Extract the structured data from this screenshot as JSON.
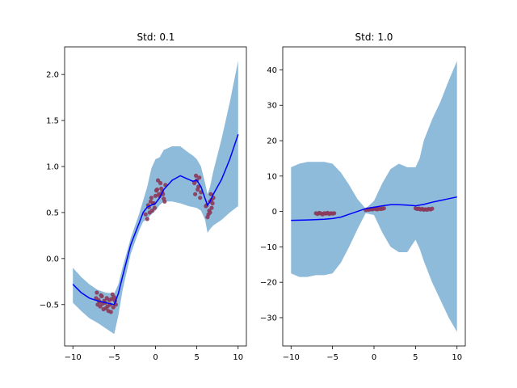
{
  "colors": {
    "band": "#8fbbda",
    "mean": "#0000ff",
    "points": "#8b3a5a",
    "frame": "#000000"
  },
  "chart_data": [
    {
      "type": "line",
      "title": "Std: 0.1",
      "xlim": [
        -11,
        11
      ],
      "ylim": [
        -0.95,
        2.3
      ],
      "xticks": [
        -10,
        -5,
        0,
        5,
        10
      ],
      "yticks": [
        -0.5,
        0.0,
        0.5,
        1.0,
        1.5,
        2.0
      ],
      "ytick_labels": [
        "−0.5",
        "0.0",
        "0.5",
        "1.0",
        "1.5",
        "2.0"
      ],
      "xtick_labels": [
        "−10",
        "−5",
        "0",
        "5",
        "10"
      ],
      "mean": {
        "x": [
          -10,
          -9,
          -8,
          -7,
          -6,
          -5,
          -4.5,
          -4,
          -3,
          -2,
          -1.5,
          -1,
          -0.5,
          0,
          0.5,
          1,
          2,
          3,
          4,
          4.5,
          5,
          5.5,
          6,
          6.3,
          6.6,
          7,
          8,
          9,
          10
        ],
        "y": [
          -0.28,
          -0.37,
          -0.43,
          -0.46,
          -0.48,
          -0.5,
          -0.38,
          -0.2,
          0.15,
          0.38,
          0.5,
          0.56,
          0.58,
          0.6,
          0.66,
          0.75,
          0.85,
          0.9,
          0.86,
          0.84,
          0.85,
          0.78,
          0.65,
          0.58,
          0.62,
          0.7,
          0.86,
          1.08,
          1.35
        ]
      },
      "band": {
        "x": [
          -10,
          -9,
          -8,
          -7,
          -6,
          -5,
          -4.5,
          -4,
          -3,
          -2,
          -1.5,
          -1,
          -0.5,
          0,
          0.5,
          1,
          2,
          3,
          4,
          4.5,
          5,
          5.5,
          6,
          6.3,
          6.6,
          7,
          8,
          9,
          10
        ],
        "upper": [
          -0.1,
          -0.2,
          -0.28,
          -0.34,
          -0.37,
          -0.38,
          -0.28,
          -0.1,
          0.22,
          0.48,
          0.63,
          0.78,
          0.98,
          1.08,
          1.1,
          1.18,
          1.22,
          1.22,
          1.15,
          1.12,
          1.08,
          1.0,
          0.82,
          0.7,
          0.78,
          0.95,
          1.3,
          1.7,
          2.15
        ],
        "lower": [
          -0.48,
          -0.57,
          -0.65,
          -0.7,
          -0.76,
          -0.82,
          -0.62,
          -0.35,
          0.05,
          0.3,
          0.4,
          0.43,
          0.48,
          0.52,
          0.58,
          0.62,
          0.62,
          0.6,
          0.57,
          0.56,
          0.55,
          0.52,
          0.42,
          0.28,
          0.32,
          0.36,
          0.42,
          0.5,
          0.57
        ]
      },
      "points": {
        "x": [
          -7.1,
          -6.9,
          -6.7,
          -6.5,
          -6.3,
          -6.1,
          -5.9,
          -5.7,
          -5.5,
          -5.3,
          -5.1,
          -4.9,
          -7.0,
          -6.6,
          -6.2,
          -5.8,
          -5.4,
          -5.0,
          -6.8,
          -6.0,
          -5.2,
          -6.4,
          -5.6,
          -7.2,
          -4.8,
          -1.2,
          -1.0,
          -0.8,
          -0.6,
          -0.4,
          -0.2,
          0.0,
          0.2,
          0.4,
          0.6,
          0.8,
          1.0,
          1.2,
          -0.9,
          -0.5,
          -0.1,
          0.3,
          0.7,
          1.1,
          -0.7,
          0.1,
          0.5,
          -0.3,
          0.9,
          4.7,
          4.9,
          5.1,
          5.3,
          5.5,
          5.0,
          5.2,
          4.8,
          5.4,
          6.2,
          6.4,
          6.6,
          6.8,
          7.0,
          6.3,
          6.5,
          6.7,
          6.9,
          6.1,
          6.6,
          6.8
        ],
        "y": [
          -0.37,
          -0.45,
          -0.52,
          -0.41,
          -0.55,
          -0.48,
          -0.43,
          -0.57,
          -0.5,
          -0.44,
          -0.53,
          -0.46,
          -0.5,
          -0.4,
          -0.46,
          -0.52,
          -0.58,
          -0.42,
          -0.47,
          -0.54,
          -0.39,
          -0.49,
          -0.45,
          -0.43,
          -0.5,
          0.48,
          0.43,
          0.56,
          0.62,
          0.52,
          0.6,
          0.68,
          0.75,
          0.7,
          0.82,
          0.72,
          0.65,
          0.8,
          0.58,
          0.66,
          0.55,
          0.85,
          0.76,
          0.62,
          0.5,
          0.74,
          0.68,
          0.6,
          0.7,
          0.82,
          0.9,
          0.75,
          0.88,
          0.72,
          0.85,
          0.78,
          0.7,
          0.66,
          0.58,
          0.48,
          0.62,
          0.55,
          0.66,
          0.45,
          0.52,
          0.7,
          0.6,
          0.57,
          0.5,
          0.64
        ]
      }
    },
    {
      "type": "line",
      "title": "Std: 1.0",
      "xlim": [
        -11,
        11
      ],
      "ylim": [
        -38,
        46.5
      ],
      "xticks": [
        -10,
        -5,
        0,
        5,
        10
      ],
      "yticks": [
        -30,
        -20,
        -10,
        0,
        10,
        20,
        30,
        40
      ],
      "ytick_labels": [
        "−30",
        "−20",
        "−10",
        "0",
        "10",
        "20",
        "30",
        "40"
      ],
      "xtick_labels": [
        "−10",
        "−5",
        "0",
        "5",
        "10"
      ],
      "mean": {
        "x": [
          -10,
          -8,
          -6,
          -5,
          -4,
          -3,
          -2,
          -1,
          0,
          1,
          2,
          3,
          4,
          5,
          6,
          7,
          8,
          9,
          10
        ],
        "y": [
          -2.5,
          -2.4,
          -2.2,
          -2.0,
          -1.6,
          -0.8,
          0.0,
          0.8,
          1.2,
          1.6,
          1.9,
          1.9,
          1.8,
          1.6,
          2.0,
          2.6,
          3.1,
          3.6,
          4.1
        ]
      },
      "band": {
        "x": [
          -10,
          -9,
          -8,
          -7,
          -6,
          -5,
          -4,
          -3,
          -2,
          -1,
          0,
          1,
          2,
          3,
          4,
          5,
          5.5,
          6,
          7,
          8,
          9,
          10
        ],
        "upper": [
          12.5,
          13.5,
          14,
          14,
          14,
          13.5,
          11,
          7.5,
          3.5,
          0.8,
          3,
          8,
          12,
          13.5,
          12.5,
          12.5,
          15,
          20,
          26,
          31,
          37,
          42.5
        ],
        "lower": [
          -17.5,
          -18.5,
          -18.5,
          -18,
          -18,
          -17.5,
          -14.5,
          -10,
          -5,
          -0.5,
          -1,
          -6,
          -10,
          -11.5,
          -11.5,
          -8,
          -10.5,
          -14,
          -20,
          -25,
          -30,
          -34
        ]
      },
      "points": {
        "x": [
          -7.0,
          -6.8,
          -6.6,
          -6.4,
          -6.2,
          -6.0,
          -5.8,
          -5.6,
          -5.4,
          -5.2,
          -5.0,
          -4.8,
          -1.0,
          -0.8,
          -0.6,
          -0.4,
          -0.2,
          0.0,
          0.2,
          0.4,
          0.6,
          0.8,
          1.0,
          1.2,
          5.0,
          5.2,
          5.4,
          5.6,
          5.8,
          6.0,
          6.2,
          6.4,
          6.6,
          6.8,
          7.0
        ],
        "y": [
          -0.5,
          -0.7,
          -0.4,
          -0.6,
          -0.8,
          -0.5,
          -0.6,
          -0.4,
          -0.7,
          -0.5,
          -0.6,
          -0.5,
          0.4,
          0.6,
          0.5,
          0.7,
          0.6,
          0.8,
          0.7,
          0.6,
          0.9,
          0.7,
          0.8,
          0.9,
          0.9,
          0.7,
          0.8,
          0.6,
          0.7,
          0.5,
          0.6,
          0.5,
          0.7,
          0.6,
          0.8
        ]
      }
    }
  ]
}
